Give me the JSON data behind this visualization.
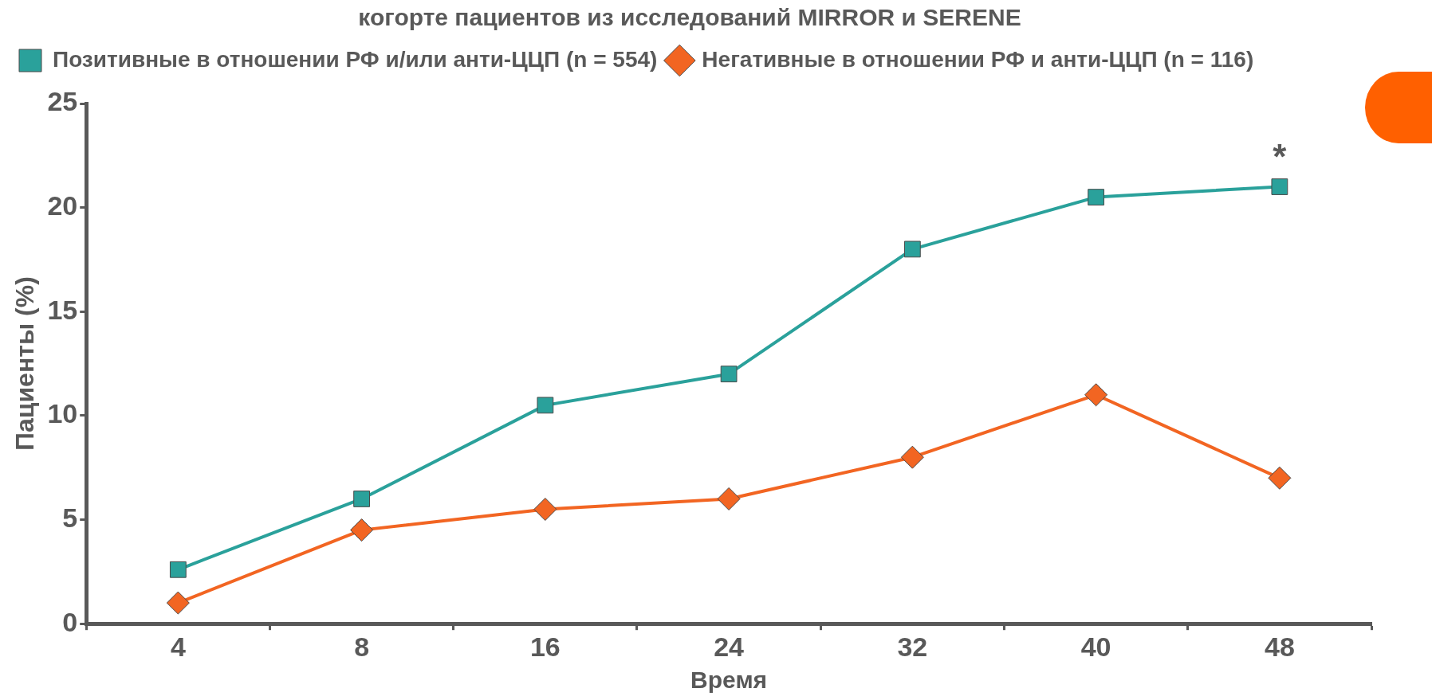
{
  "chart_data": {
    "type": "line",
    "title": "когорте пациентов из исследований MIRROR и SERENE",
    "xlabel": "Время",
    "ylabel": "Пациенты (%)",
    "categories": [
      "4",
      "8",
      "16",
      "24",
      "32",
      "40",
      "48"
    ],
    "series": [
      {
        "name": "Позитивные в отношении РФ и/или анти-ЦЦП (n = 554)",
        "color": "#2aa19b",
        "marker": "square",
        "values": [
          2.6,
          6,
          10.5,
          12,
          18,
          20.5,
          21
        ]
      },
      {
        "name": "Негативные в отношении РФ и анти-ЦЦП (n = 116)",
        "color": "#f26522",
        "marker": "diamond",
        "values": [
          1,
          4.5,
          5.5,
          6,
          8,
          11,
          7
        ]
      }
    ],
    "ylim": [
      0,
      25
    ],
    "yticks": [
      0,
      5,
      10,
      15,
      20,
      25
    ],
    "grid": false,
    "legend": "top left",
    "line_style": "solid",
    "annotations": [
      "*"
    ]
  }
}
